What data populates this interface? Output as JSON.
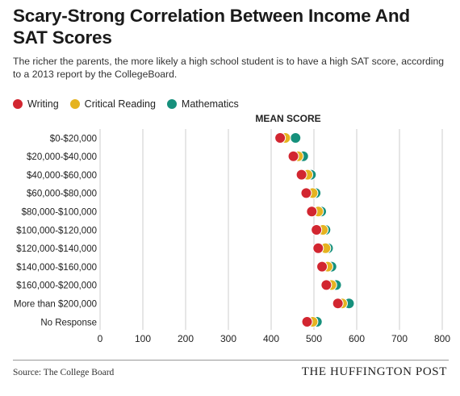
{
  "title": "Scary-Strong Correlation Between Income And SAT Scores",
  "subtitle": "The richer the parents, the more likely a high school student is to have a high SAT score, according to a 2013 report by the CollegeBoard.",
  "source": "Source: The College Board",
  "brand": "THE HUFFINGTON POST",
  "colors": {
    "writing": "#d22630",
    "critical_reading": "#e5b320",
    "mathematics": "#16907c",
    "grid": "#cccccc",
    "text": "#222222"
  },
  "chart_data": {
    "type": "scatter",
    "title": "",
    "xlabel": "MEAN SCORE",
    "ylabel": "",
    "xlim": [
      0,
      800
    ],
    "xticks": [
      0,
      100,
      200,
      300,
      400,
      500,
      600,
      700,
      800
    ],
    "grid": "vertical",
    "legend_position": "top-left",
    "categories": [
      "$0-$20,000",
      "$20,000-$40,000",
      "$40,000-$60,000",
      "$60,000-$80,000",
      "$80,000-$100,000",
      "$100,000-$120,000",
      "$120,000-$140,000",
      "$140,000-$160,000",
      "$160,000-$200,000",
      "More than $200,000",
      "No Response"
    ],
    "series": [
      {
        "name": "Writing",
        "color": "#d22630",
        "values": [
          421,
          452,
          471,
          482,
          495,
          506,
          510,
          519,
          529,
          556,
          484
        ]
      },
      {
        "name": "Critical Reading",
        "color": "#e5b320",
        "values": [
          433,
          463,
          485,
          497,
          510,
          521,
          527,
          532,
          541,
          566,
          497
        ]
      },
      {
        "name": "Mathematics",
        "color": "#16907c",
        "values": [
          457,
          475,
          493,
          504,
          517,
          527,
          533,
          541,
          552,
          582,
          507
        ]
      }
    ]
  }
}
